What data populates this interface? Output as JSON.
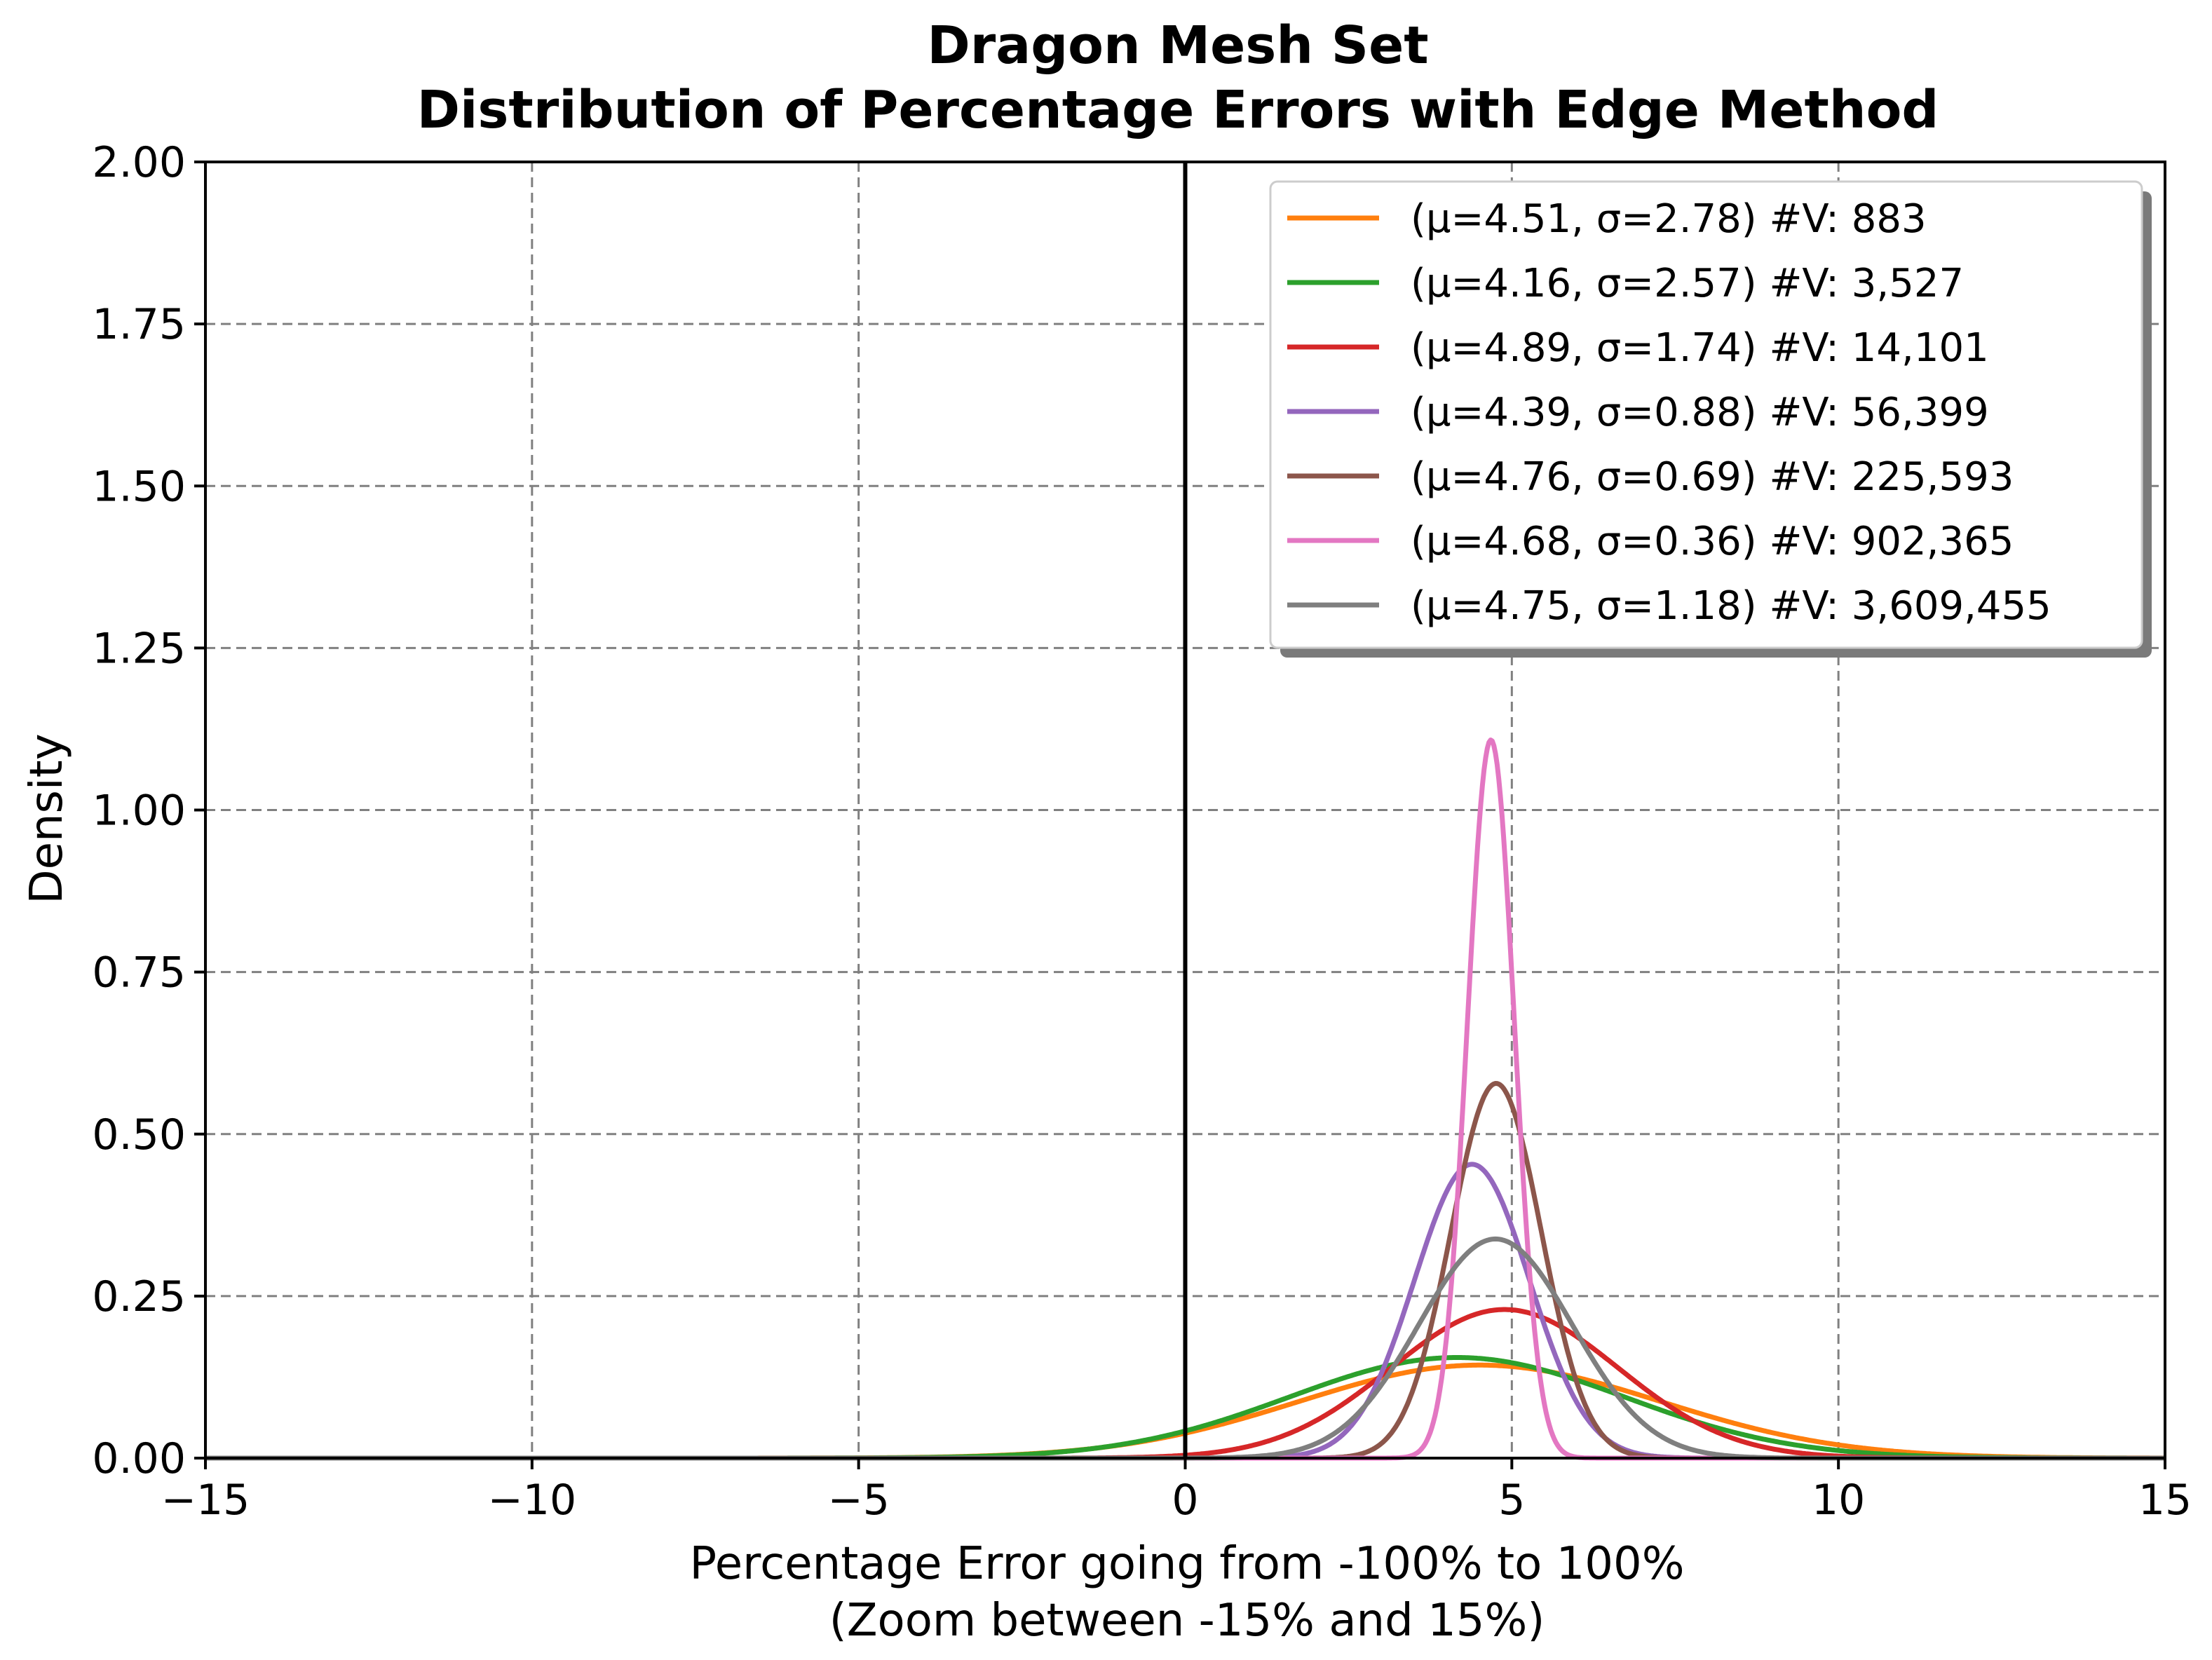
{
  "chart_data": {
    "type": "line",
    "title_lines": [
      "Dragon Mesh Set",
      "Distribution of Percentage Errors with Edge Method"
    ],
    "xlabel_lines": [
      "Percentage Error going from -100% to 100%",
      "(Zoom between -15% and 15%)"
    ],
    "ylabel": "Density",
    "xlim": [
      -15,
      15
    ],
    "ylim": [
      0,
      2.0
    ],
    "x_ticks": [
      -15,
      -10,
      -5,
      0,
      5,
      10,
      15
    ],
    "x_tick_labels": [
      "−15",
      "−10",
      "−5",
      "0",
      "5",
      "10",
      "15"
    ],
    "y_ticks": [
      0,
      0.25,
      0.5,
      0.75,
      1.0,
      1.25,
      1.5,
      1.75,
      2.0
    ],
    "y_tick_labels": [
      "0.00",
      "0.25",
      "0.50",
      "0.75",
      "1.00",
      "1.25",
      "1.50",
      "1.75",
      "2.00"
    ],
    "grid": true,
    "vertical_reference_line_x": 0,
    "legend_position": "upper right",
    "series": [
      {
        "name": "(μ=4.51, σ=2.78) #V: 883",
        "mu": 4.51,
        "sigma": 2.78,
        "color": "#ff7f0e"
      },
      {
        "name": "(μ=4.16, σ=2.57) #V: 3,527",
        "mu": 4.16,
        "sigma": 2.57,
        "color": "#2ca02c"
      },
      {
        "name": "(μ=4.89, σ=1.74) #V: 14,101",
        "mu": 4.89,
        "sigma": 1.74,
        "color": "#d62728"
      },
      {
        "name": "(μ=4.39, σ=0.88) #V: 56,399",
        "mu": 4.39,
        "sigma": 0.88,
        "color": "#9467bd"
      },
      {
        "name": "(μ=4.76, σ=0.69) #V: 225,593",
        "mu": 4.76,
        "sigma": 0.69,
        "color": "#8c564b"
      },
      {
        "name": "(μ=4.68, σ=0.36) #V: 902,365",
        "mu": 4.68,
        "sigma": 0.36,
        "color": "#e377c2"
      },
      {
        "name": "(μ=4.75, σ=1.18) #V: 3,609,455",
        "mu": 4.75,
        "sigma": 1.18,
        "color": "#7f7f7f"
      }
    ]
  }
}
